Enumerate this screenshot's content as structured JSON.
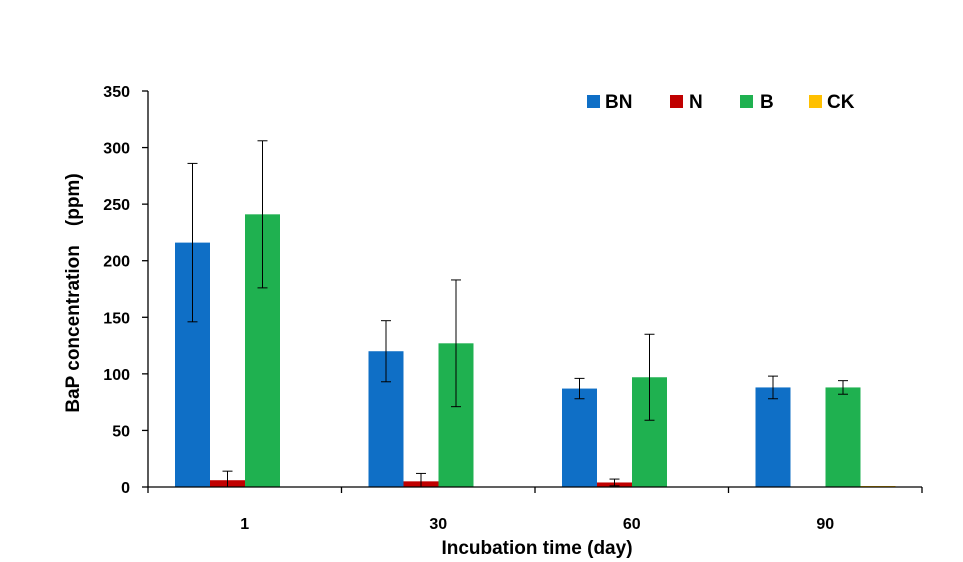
{
  "colors": {
    "BN": "#0F6FC6",
    "N": "#C00000",
    "B": "#1FB150",
    "CK": "#FFC000",
    "axis": "#000000"
  },
  "chart_data": {
    "type": "bar",
    "title": "",
    "xlabel": "Incubation time (day)",
    "ylabel": "BaP concentration　(ppm)",
    "categories": [
      "1",
      "30",
      "60",
      "90"
    ],
    "ylim": [
      0,
      350
    ],
    "yticks": [
      0,
      50,
      100,
      150,
      200,
      250,
      300,
      350
    ],
    "grid": false,
    "legend_position": "top-right",
    "series": [
      {
        "name": "BN",
        "values": [
          216,
          120,
          87,
          88
        ],
        "errors": [
          70,
          27,
          9,
          10
        ]
      },
      {
        "name": "N",
        "values": [
          6,
          5,
          4,
          0
        ],
        "errors": [
          8,
          7,
          3,
          0
        ]
      },
      {
        "name": "B",
        "values": [
          241,
          127,
          97,
          88
        ],
        "errors": [
          65,
          56,
          38,
          6
        ]
      },
      {
        "name": "CK",
        "values": [
          0,
          0,
          0,
          0.5
        ],
        "errors": [
          0,
          0,
          0,
          0
        ]
      }
    ]
  }
}
